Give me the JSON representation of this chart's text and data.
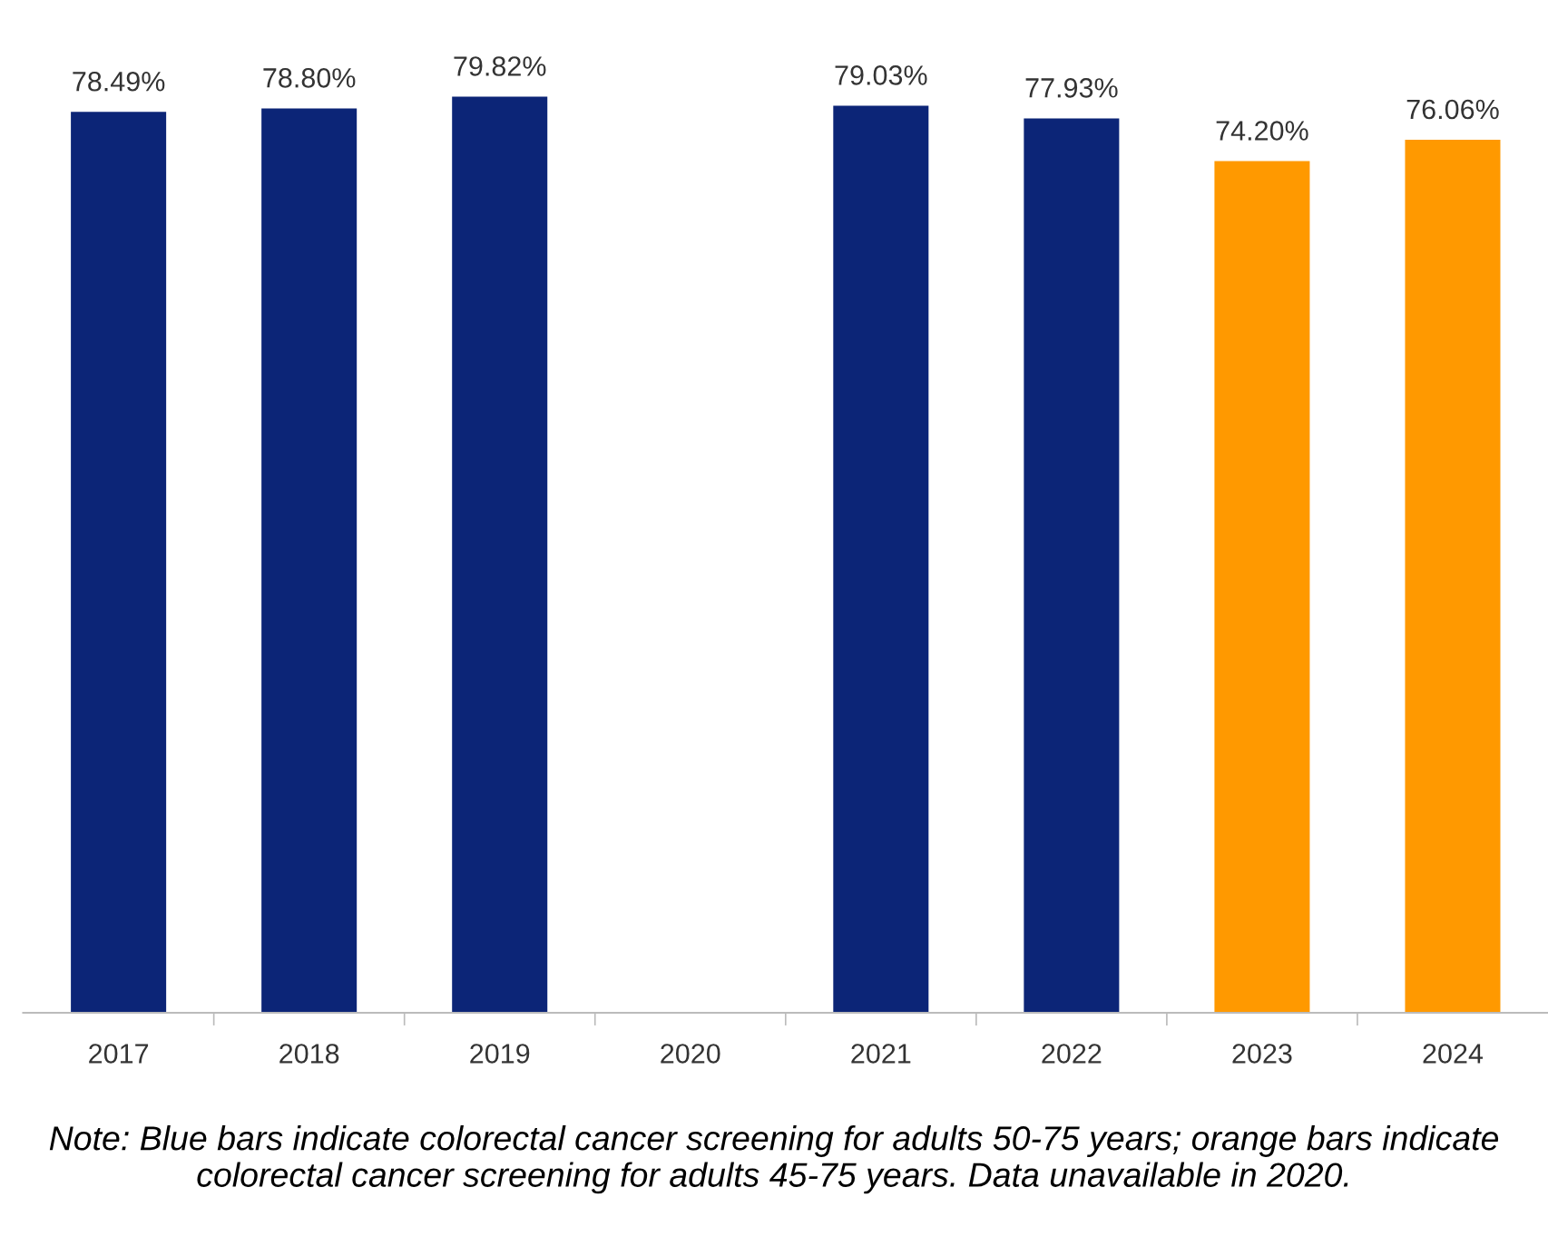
{
  "chart_data": {
    "type": "bar",
    "categories": [
      "2017",
      "2018",
      "2019",
      "2020",
      "2021",
      "2022",
      "2023",
      "2024"
    ],
    "values": [
      78.49,
      78.8,
      79.82,
      null,
      79.03,
      77.93,
      74.2,
      76.06
    ],
    "colors": [
      "#0c2577",
      "#0c2577",
      "#0c2577",
      "#0c2577",
      "#0c2577",
      "#0c2577",
      "#ff9900",
      "#ff9900"
    ],
    "value_labels": [
      "78.49%",
      "78.80%",
      "79.82%",
      null,
      "79.03%",
      "77.93%",
      "74.20%",
      "76.06%"
    ],
    "tick_labels": "x",
    "annotations": [
      "Note: Blue bars indicate colorectal cancer screening for adults 50-75 years; orange bars indicate colorectal cancer screening for adults 45-75 years. Data unavailable in 2020."
    ]
  }
}
